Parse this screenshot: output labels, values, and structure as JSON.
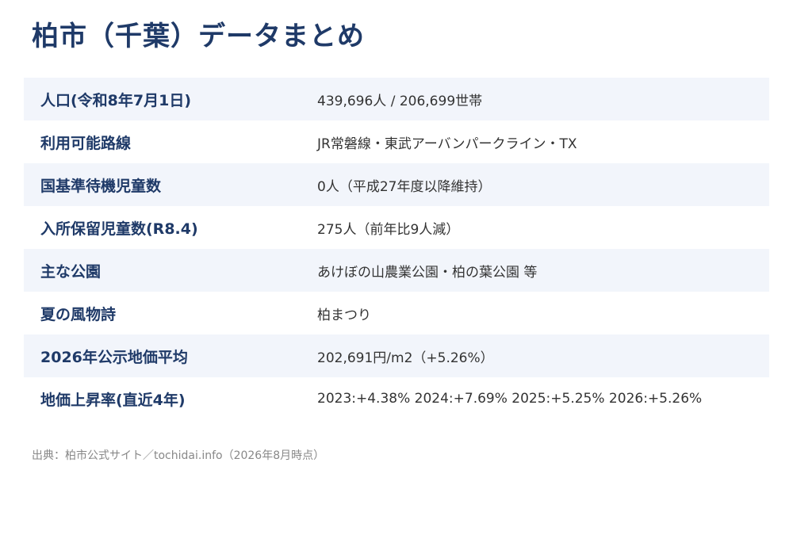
{
  "title": "柏市（千葉）データまとめ",
  "rows": [
    {
      "label": "人口(令和8年7月1日)",
      "value": "439,696人 / 206,699世帯"
    },
    {
      "label": "利用可能路線",
      "value": "JR常磐線・東武アーバンパークライン・TX"
    },
    {
      "label": "国基準待機児童数",
      "value": "0人（平成27年度以降維持）"
    },
    {
      "label": "入所保留児童数(R8.4)",
      "value": "275人（前年比9人減）"
    },
    {
      "label": "主な公園",
      "value": "あけぼの山農業公園・柏の葉公園 等"
    },
    {
      "label": "夏の風物詩",
      "value": "柏まつり"
    },
    {
      "label": "2026年公示地価平均",
      "value": "202,691円/m2（+5.26%）"
    },
    {
      "label": "地価上昇率(直近4年)",
      "value": "2023:+4.38% 2024:+7.69% 2025:+5.25% 2026:+5.26%"
    }
  ],
  "source": "出典：柏市公式サイト／tochidai.info（2026年8月時点）",
  "colors": {
    "title": "#1f3a68",
    "label": "#1f3a68",
    "row_shade": "#f2f5fb",
    "source": "#888888"
  }
}
